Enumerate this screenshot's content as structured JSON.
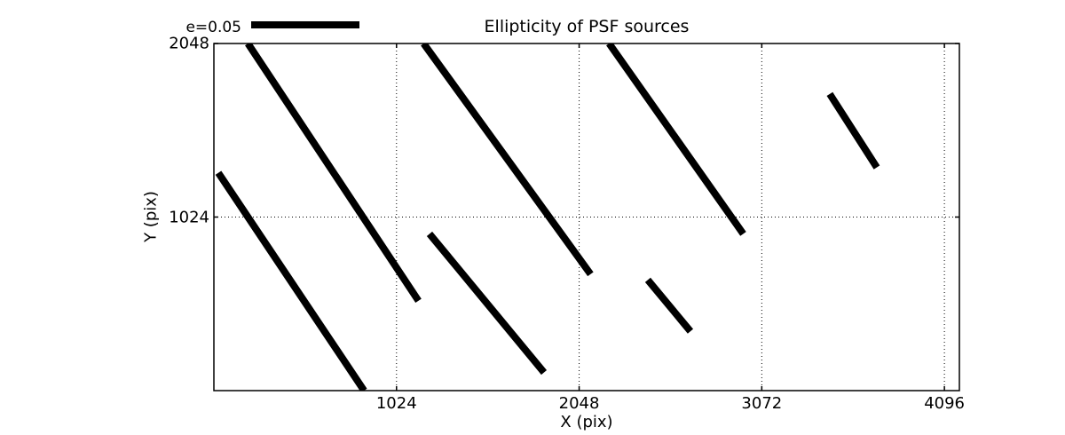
{
  "figure": {
    "background": "#ffffff",
    "foreground": "#000000"
  },
  "chart_data": {
    "type": "line",
    "subtype": "ellipticity-whisker-map",
    "title": "Ellipticity of PSF sources",
    "xlabel": "X (pix)",
    "ylabel": "Y (pix)",
    "xlim": [
      0,
      4180
    ],
    "ylim": [
      0,
      2048
    ],
    "x_ticks": [
      1024,
      2048,
      3072,
      4096
    ],
    "y_ticks": [
      1024,
      2048
    ],
    "grid": {
      "on": true,
      "style": "dotted",
      "color": "#000000"
    },
    "legend": {
      "label": "e=0.05",
      "position": "upper-left-above-axes",
      "bar_color": "#000000"
    },
    "line_color": "#000000",
    "segments": [
      {
        "x1": 191,
        "y1": 2048,
        "x2": 1147,
        "y2": 530
      },
      {
        "x1": 25,
        "y1": 1285,
        "x2": 842,
        "y2": 0
      },
      {
        "x1": 1176,
        "y1": 2048,
        "x2": 2112,
        "y2": 687
      },
      {
        "x1": 1209,
        "y1": 925,
        "x2": 1851,
        "y2": 107
      },
      {
        "x1": 2216,
        "y1": 2048,
        "x2": 2968,
        "y2": 925
      },
      {
        "x1": 2433,
        "y1": 653,
        "x2": 2672,
        "y2": 350
      },
      {
        "x1": 3453,
        "y1": 1750,
        "x2": 3717,
        "y2": 1317
      }
    ]
  }
}
